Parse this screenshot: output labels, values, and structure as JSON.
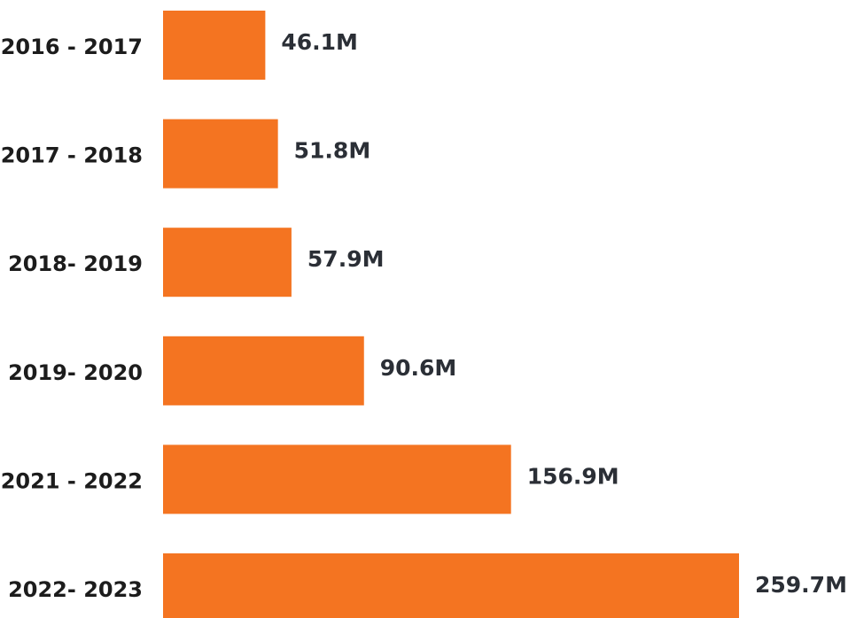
{
  "chart_data": {
    "type": "bar",
    "orientation": "horizontal",
    "title": "",
    "xlabel": "",
    "ylabel": "",
    "categories": [
      "2016 - 2017",
      "2017 - 2018",
      "2018- 2019",
      "2019- 2020",
      "2021 - 2022",
      "2022- 2023"
    ],
    "values": [
      46.1,
      51.8,
      57.9,
      90.6,
      156.9,
      259.7
    ],
    "value_labels": [
      "46.1M",
      "51.8M",
      "57.9M",
      "90.6M",
      "156.9M",
      "259.7M"
    ],
    "xlim": [
      0,
      259.7
    ],
    "grid": false,
    "legend": "none",
    "bar_color": "#f47421"
  }
}
